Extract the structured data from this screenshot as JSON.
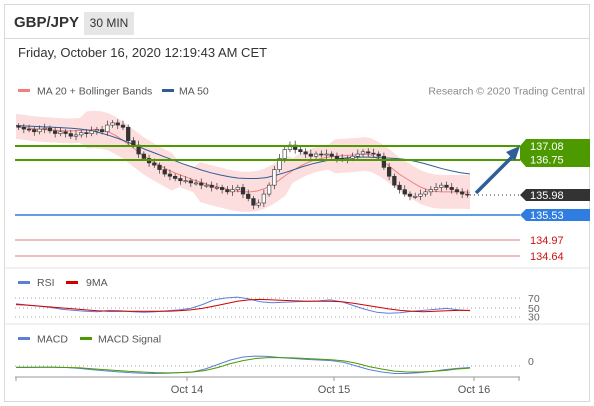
{
  "header": {
    "pair": "GBP/JPY",
    "timeframe": "30 MIN",
    "timestamp": "Friday, October 16, 2020 12:19:43 AM CET"
  },
  "credit": "Research © 2020 Trading Central",
  "colors": {
    "bollinger_band": "#fcd3d3",
    "ma20": "#f08080",
    "ma50": "#2f5d95",
    "resistance": "#4c9a00",
    "support": "#2f7de1",
    "target_down": "#d9534f",
    "price": "#333333",
    "rsi": "#5b7fd6",
    "rsi_ma": "#d00000",
    "macd": "#5b7fd6",
    "macd_signal": "#4c9a00",
    "forecast_arrow": "#2f5d95"
  },
  "chart_data": [
    {
      "type": "candlestick",
      "name": "price",
      "x_ticks": [
        "Oct 14",
        "Oct 15",
        "Oct 16"
      ],
      "legend": [
        "MA 20 + Bollinger Bands",
        "MA 50"
      ],
      "legend_placement": "top-left",
      "levels": [
        {
          "value": "137.08",
          "kind": "resistance"
        },
        {
          "value": "136.75",
          "kind": "resistance"
        },
        {
          "value": "135.98",
          "kind": "current"
        },
        {
          "value": "135.53",
          "kind": "support"
        },
        {
          "value": "134.97",
          "kind": "target"
        },
        {
          "value": "134.64",
          "kind": "target"
        }
      ],
      "ylim": [
        134.4,
        137.8
      ],
      "close": [
        137.5,
        137.46,
        137.45,
        137.4,
        137.46,
        137.48,
        137.42,
        137.36,
        137.4,
        137.36,
        137.3,
        137.33,
        137.38,
        137.36,
        137.42,
        137.45,
        137.4,
        137.55,
        137.6,
        137.55,
        137.5,
        137.2,
        137.1,
        136.9,
        136.8,
        136.7,
        136.65,
        136.55,
        136.45,
        136.4,
        136.35,
        136.3,
        136.3,
        136.25,
        136.25,
        136.2,
        136.2,
        136.15,
        136.15,
        136.1,
        136.05,
        136.1,
        136.15,
        136.0,
        135.9,
        135.75,
        135.8,
        136.0,
        136.2,
        136.55,
        136.8,
        137.0,
        137.1,
        137.0,
        136.95,
        136.9,
        136.85,
        136.9,
        136.88,
        136.9,
        136.85,
        136.8,
        136.78,
        136.8,
        136.85,
        136.9,
        136.95,
        136.92,
        136.9,
        136.85,
        136.6,
        136.4,
        136.2,
        136.1,
        136.0,
        135.95,
        135.95,
        136.0,
        136.05,
        136.1,
        136.15,
        136.2,
        136.15,
        136.1,
        136.05,
        136.0,
        135.98
      ],
      "ma20": [
        137.52,
        137.5,
        137.48,
        137.46,
        137.45,
        137.44,
        137.43,
        137.42,
        137.42,
        137.43,
        137.44,
        137.45,
        137.44,
        137.4,
        137.32,
        137.22,
        137.1,
        136.98,
        136.86,
        136.76,
        136.67,
        136.58,
        136.5,
        136.44,
        136.38,
        136.32,
        136.27,
        136.22,
        136.18,
        136.14,
        136.1,
        136.07,
        136.05,
        136.05,
        136.07,
        136.12,
        136.2,
        136.3,
        136.42,
        136.53,
        136.62,
        136.7,
        136.76,
        136.8,
        136.83,
        136.85,
        136.86,
        136.87,
        136.88,
        136.9,
        136.88,
        136.8,
        136.7,
        136.58,
        136.45,
        136.35,
        136.25,
        136.16,
        136.1,
        136.06,
        136.05,
        136.05,
        136.05,
        136.05,
        136.04
      ],
      "ma50": [
        137.54,
        137.53,
        137.52,
        137.51,
        137.5,
        137.49,
        137.48,
        137.46,
        137.43,
        137.38,
        137.32,
        137.25,
        137.17,
        137.09,
        137.0,
        136.92,
        136.84,
        136.76,
        136.68,
        136.61,
        136.54,
        136.48,
        136.43,
        136.39,
        136.36,
        136.35,
        136.35,
        136.37,
        136.42,
        136.48,
        136.55,
        136.62,
        136.68,
        136.73,
        136.77,
        136.8,
        136.82,
        136.83,
        136.83,
        136.82,
        136.81,
        136.8,
        136.78,
        136.74,
        136.69,
        136.63,
        136.57,
        136.52,
        136.48,
        136.45
      ]
    },
    {
      "type": "line",
      "name": "rsi",
      "legend": [
        "RSI",
        "9MA"
      ],
      "y_ticks": [
        "70",
        "50",
        "30"
      ],
      "ylim": [
        20,
        80
      ],
      "series": [
        {
          "name": "RSI",
          "values": [
            58,
            55,
            53,
            50,
            46,
            44,
            42,
            41,
            44,
            43,
            41,
            40,
            41,
            43,
            45,
            48,
            56,
            66,
            70,
            72,
            68,
            62,
            60,
            61,
            62,
            63,
            64,
            66,
            62,
            54,
            46,
            40,
            38,
            39,
            42,
            44,
            46,
            48,
            45,
            43
          ]
        },
        {
          "name": "9MA",
          "values": [
            56,
            55,
            53,
            51,
            49,
            47,
            45,
            43,
            42,
            42,
            42,
            42,
            42,
            42,
            43,
            45,
            48,
            53,
            58,
            63,
            66,
            67,
            66,
            65,
            64,
            63,
            63,
            63,
            62,
            59,
            55,
            51,
            47,
            44,
            42,
            41,
            42,
            43,
            44,
            44
          ]
        }
      ]
    },
    {
      "type": "line",
      "name": "macd",
      "legend": [
        "MACD",
        "MACD Signal"
      ],
      "y_ticks": [
        "0"
      ],
      "ylim": [
        -0.6,
        0.6
      ],
      "series": [
        {
          "name": "MACD",
          "values": [
            -0.05,
            -0.05,
            -0.04,
            -0.04,
            -0.05,
            -0.08,
            -0.12,
            -0.16,
            -0.19,
            -0.22,
            -0.24,
            -0.25,
            -0.24,
            -0.22,
            -0.2,
            -0.1,
            0.05,
            0.2,
            0.3,
            0.33,
            0.32,
            0.28,
            0.25,
            0.22,
            0.2,
            0.18,
            0.12,
            0.0,
            -0.12,
            -0.2,
            -0.25,
            -0.25,
            -0.22,
            -0.18,
            -0.12,
            -0.08,
            -0.05
          ]
        },
        {
          "name": "MACD Signal",
          "values": [
            -0.04,
            -0.04,
            -0.04,
            -0.04,
            -0.05,
            -0.06,
            -0.09,
            -0.12,
            -0.15,
            -0.18,
            -0.2,
            -0.22,
            -0.23,
            -0.22,
            -0.2,
            -0.15,
            -0.05,
            0.08,
            0.18,
            0.25,
            0.28,
            0.28,
            0.27,
            0.25,
            0.23,
            0.21,
            0.17,
            0.09,
            -0.02,
            -0.1,
            -0.17,
            -0.2,
            -0.2,
            -0.18,
            -0.15,
            -0.1,
            -0.07
          ]
        }
      ]
    }
  ]
}
